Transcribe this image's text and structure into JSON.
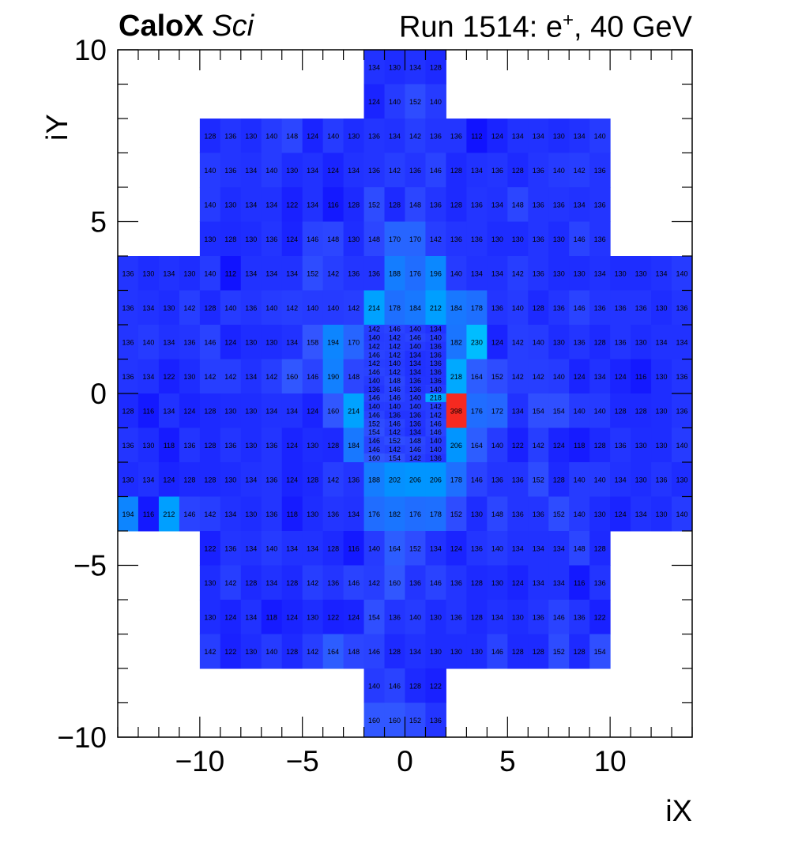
{
  "header": {
    "experiment": "CaloX",
    "subtitle": "Sci",
    "run_prefix": "Run 1514: e",
    "run_superscript": "+",
    "run_suffix": ", 40 GeV"
  },
  "chart_data": {
    "type": "heatmap",
    "xlabel": "iX",
    "ylabel": "iY",
    "xlim": [
      -14,
      14
    ],
    "ylim": [
      -10,
      10
    ],
    "grid": false,
    "x_ticks": [
      -10,
      -5,
      0,
      5,
      10
    ],
    "y_ticks": [
      -10,
      -5,
      0,
      5,
      10
    ],
    "x_tick_labels": [
      "−10",
      "−5",
      "0",
      "5",
      "10"
    ],
    "y_tick_labels": [
      "−10",
      "−5",
      "0",
      "5",
      "10"
    ],
    "color_scale": [
      "#1010ff",
      "#3355ff",
      "#0096ff",
      "#00e6ff",
      "#00ffb0",
      "#22ff22",
      "#ff2020"
    ],
    "color_range": [
      110,
      400
    ],
    "coarse_cells": [
      {
        "row": 9,
        "x0": -2,
        "values": [
          134,
          130,
          134,
          128
        ]
      },
      {
        "row": 8,
        "x0": -2,
        "values": [
          124,
          140,
          152,
          140
        ]
      },
      {
        "row": 7,
        "x0": -10,
        "values": [
          128,
          136,
          130,
          140,
          148,
          124,
          140,
          130,
          136,
          134,
          142,
          136,
          136,
          112,
          124,
          134,
          134,
          130,
          134,
          140
        ]
      },
      {
        "row": 6,
        "x0": -10,
        "values": [
          140,
          136,
          134,
          140,
          130,
          134,
          124,
          134,
          136,
          142,
          136,
          146,
          128,
          134,
          136,
          128,
          136,
          140,
          142,
          136
        ]
      },
      {
        "row": 5,
        "x0": -10,
        "values": [
          140,
          130,
          134,
          134,
          122,
          134,
          116,
          128,
          152,
          128,
          148,
          136,
          128,
          136,
          134,
          148,
          136,
          136,
          134,
          136
        ]
      },
      {
        "row": 4,
        "x0": -10,
        "values": [
          130,
          128,
          130,
          136,
          124,
          146,
          148,
          130,
          148,
          170,
          170,
          142,
          136,
          136,
          130,
          130,
          136,
          130,
          146,
          136
        ]
      },
      {
        "row": 3,
        "x0": -14,
        "values": [
          136,
          130,
          134,
          130,
          140,
          112,
          134,
          134,
          134,
          152,
          142,
          136,
          136,
          188,
          176,
          196,
          140,
          134,
          134,
          142,
          136,
          130,
          130,
          134,
          130,
          130,
          134,
          140
        ]
      },
      {
        "row": 2,
        "x0": -14,
        "values": [
          136,
          134,
          130,
          142,
          128,
          140,
          136,
          140,
          142,
          140,
          140,
          142,
          214,
          178,
          184,
          212,
          184,
          178,
          136,
          140,
          128,
          136,
          146,
          136,
          136,
          136,
          130,
          136
        ]
      },
      {
        "row": 1,
        "x0": -14,
        "values": [
          136,
          140,
          134,
          136,
          146,
          124,
          130,
          130,
          134,
          158,
          194,
          170,
          null,
          null,
          null,
          null,
          182,
          230,
          124,
          142,
          140,
          130,
          136,
          128,
          136,
          130,
          134,
          134
        ]
      },
      {
        "row": 0,
        "x0": -14,
        "values": [
          136,
          134,
          122,
          130,
          142,
          142,
          134,
          142,
          160,
          146,
          190,
          148,
          null,
          null,
          null,
          null,
          218,
          164,
          152,
          142,
          142,
          140,
          124,
          134,
          124,
          116,
          130,
          136
        ]
      },
      {
        "row": -1,
        "x0": -14,
        "values": [
          128,
          116,
          134,
          124,
          128,
          130,
          130,
          134,
          134,
          124,
          160,
          214,
          null,
          null,
          null,
          null,
          398,
          176,
          172,
          134,
          154,
          154,
          140,
          140,
          128,
          128,
          130,
          136
        ]
      },
      {
        "row": -2,
        "x0": -14,
        "values": [
          136,
          130,
          118,
          136,
          128,
          136,
          130,
          136,
          124,
          130,
          128,
          184,
          null,
          null,
          null,
          null,
          206,
          164,
          140,
          122,
          142,
          124,
          118,
          128,
          136,
          130,
          130,
          140
        ]
      },
      {
        "row": -3,
        "x0": -14,
        "values": [
          130,
          134,
          124,
          128,
          128,
          130,
          134,
          136,
          124,
          128,
          142,
          136,
          188,
          202,
          206,
          206,
          178,
          146,
          136,
          136,
          152,
          128,
          140,
          140,
          134,
          130,
          136,
          130
        ]
      },
      {
        "row": -4,
        "x0": -14,
        "values": [
          194,
          116,
          212,
          146,
          142,
          134,
          130,
          136,
          118,
          130,
          136,
          134,
          176,
          182,
          176,
          178,
          152,
          130,
          148,
          136,
          136,
          152,
          140,
          130,
          124,
          134,
          130,
          140
        ]
      },
      {
        "row": -5,
        "x0": -10,
        "values": [
          122,
          136,
          134,
          140,
          134,
          134,
          128,
          116,
          140,
          164,
          152,
          134,
          124,
          136,
          140,
          134,
          134,
          134,
          148,
          128
        ]
      },
      {
        "row": -6,
        "x0": -10,
        "values": [
          130,
          142,
          128,
          134,
          128,
          142,
          136,
          146,
          142,
          160,
          136,
          146,
          136,
          128,
          130,
          124,
          134,
          134,
          116,
          136
        ]
      },
      {
        "row": -7,
        "x0": -10,
        "values": [
          130,
          124,
          134,
          118,
          124,
          130,
          122,
          124,
          154,
          136,
          140,
          130,
          136,
          128,
          134,
          130,
          136,
          146,
          136,
          122
        ]
      },
      {
        "row": -8,
        "x0": -10,
        "values": [
          142,
          122,
          130,
          140,
          128,
          142,
          164,
          148,
          146,
          128,
          134,
          130,
          130,
          130,
          146,
          128,
          128,
          152,
          128,
          154
        ]
      },
      {
        "row": -9,
        "x0": -2,
        "values": [
          140,
          146,
          128,
          122
        ]
      },
      {
        "row": -10,
        "x0": -2,
        "values": [
          160,
          160,
          152,
          136
        ]
      }
    ],
    "fine_region": {
      "x_range": [
        -2,
        2
      ],
      "y_range": [
        -2,
        2
      ],
      "rows": [
        [
          142,
          146,
          140,
          134
        ],
        [
          140,
          142,
          146,
          140
        ],
        [
          142,
          142,
          140,
          136
        ],
        [
          146,
          142,
          134,
          136
        ],
        [
          142,
          140,
          134,
          136
        ],
        [
          146,
          142,
          134,
          136
        ],
        [
          140,
          148,
          136,
          136
        ],
        [
          136,
          146,
          136,
          140
        ],
        [
          146,
          146,
          140,
          218
        ],
        [
          140,
          140,
          140,
          142
        ],
        [
          146,
          136,
          136,
          142
        ],
        [
          152,
          146,
          136,
          146
        ],
        [
          154,
          142,
          134,
          146
        ],
        [
          146,
          152,
          148,
          140
        ],
        [
          146,
          142,
          146,
          140
        ],
        [
          160,
          154,
          142,
          136
        ]
      ]
    }
  }
}
